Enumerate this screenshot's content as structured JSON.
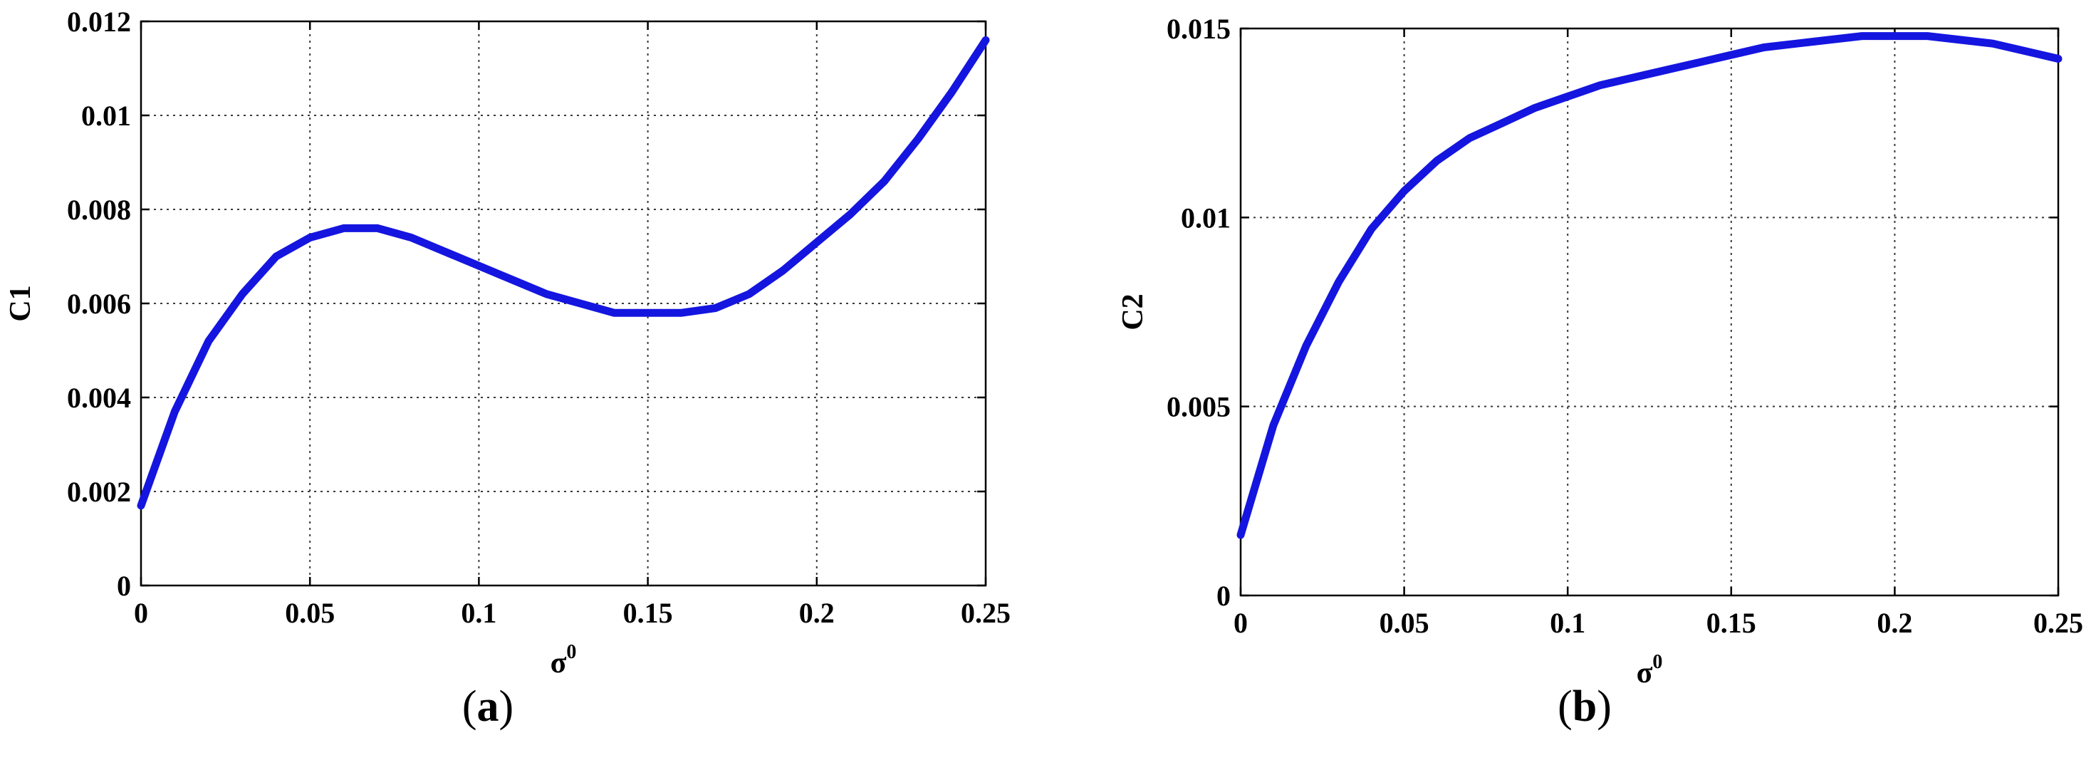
{
  "chart_data": [
    {
      "type": "line",
      "panel_label": "a",
      "xlabel": "σ",
      "xlabel_sup": "0",
      "ylabel": "C1",
      "xlim": [
        0,
        0.25
      ],
      "ylim": [
        0,
        0.012
      ],
      "xticks": [
        "0",
        "0.05",
        "0.1",
        "0.15",
        "0.2",
        "0.25"
      ],
      "yticks": [
        "0",
        "0.002",
        "0.004",
        "0.006",
        "0.008",
        "0.01",
        "0.012"
      ],
      "grid": true,
      "line_color": "#1515e0",
      "x": [
        0,
        0.01,
        0.02,
        0.03,
        0.04,
        0.05,
        0.06,
        0.07,
        0.08,
        0.09,
        0.1,
        0.11,
        0.12,
        0.13,
        0.14,
        0.15,
        0.16,
        0.17,
        0.18,
        0.19,
        0.2,
        0.21,
        0.22,
        0.23,
        0.24,
        0.25
      ],
      "y": [
        0.0017,
        0.0037,
        0.0052,
        0.0062,
        0.007,
        0.0074,
        0.0076,
        0.0076,
        0.0074,
        0.0071,
        0.0068,
        0.0065,
        0.0062,
        0.006,
        0.0058,
        0.0058,
        0.0058,
        0.0059,
        0.0062,
        0.0067,
        0.0073,
        0.0079,
        0.0086,
        0.0095,
        0.0105,
        0.0116
      ]
    },
    {
      "type": "line",
      "panel_label": "b",
      "xlabel": "σ",
      "xlabel_sup": "0",
      "ylabel": "C2",
      "xlim": [
        0,
        0.25
      ],
      "ylim": [
        0,
        0.015
      ],
      "xticks": [
        "0",
        "0.05",
        "0.1",
        "0.15",
        "0.2",
        "0.25"
      ],
      "yticks": [
        "0",
        "0.005",
        "0.01",
        "0.015"
      ],
      "grid": true,
      "line_color": "#1515e0",
      "x": [
        0,
        0.01,
        0.02,
        0.03,
        0.04,
        0.05,
        0.06,
        0.07,
        0.08,
        0.09,
        0.1,
        0.11,
        0.12,
        0.13,
        0.14,
        0.15,
        0.16,
        0.17,
        0.18,
        0.19,
        0.2,
        0.21,
        0.22,
        0.23,
        0.24,
        0.25
      ],
      "y": [
        0.0016,
        0.0045,
        0.0066,
        0.0083,
        0.0097,
        0.0107,
        0.0115,
        0.0121,
        0.0125,
        0.0129,
        0.0132,
        0.0135,
        0.0137,
        0.0139,
        0.0141,
        0.0143,
        0.0145,
        0.0146,
        0.0147,
        0.0148,
        0.0148,
        0.0148,
        0.0147,
        0.0146,
        0.0144,
        0.0142
      ]
    }
  ]
}
